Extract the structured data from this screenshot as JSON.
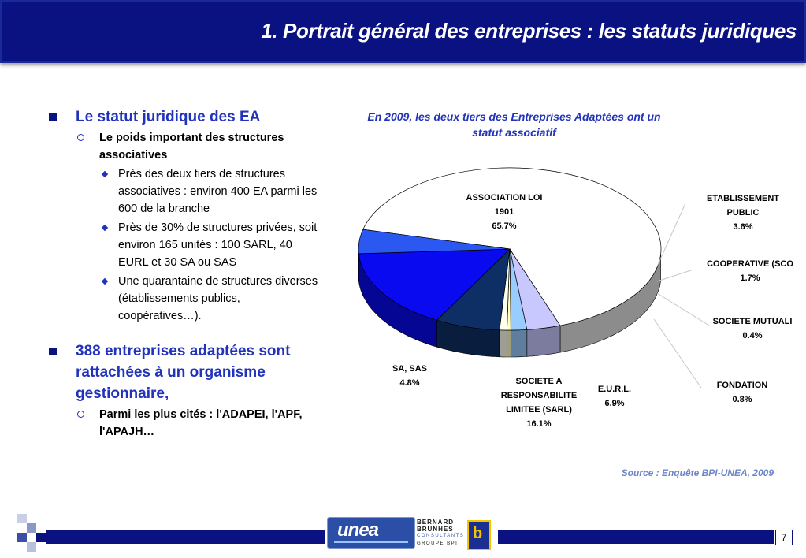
{
  "header": {
    "title": "1. Portrait général des entreprises : les statuts juridiques"
  },
  "bullets": {
    "b1": "Le statut juridique des EA",
    "b1_1": "Le poids important des structures associatives",
    "b1_1_1": "Près des deux tiers de structures associatives : environ 400 EA parmi les 600 de la branche",
    "b1_1_2": "Près de 30% de structures privées, soit environ 165 unités : 100 SARL, 40 EURL et 30 SA ou SAS",
    "b1_1_3": "Une quarantaine de structures diverses (établissements publics, coopératives…).",
    "b2": "388 entreprises adaptées sont rattachées à un organisme gestionnaire,",
    "b2_1": "Parmi les plus cités : l'ADAPEI, l'APF, l'APAJH…"
  },
  "chart_data": {
    "type": "pie",
    "title": "En 2009, les deux tiers des Entreprises Adaptées ont un statut associatif",
    "slices": [
      {
        "label": "ASSOCIATION LOI 1901",
        "value": 65.7,
        "value_label": "65.7%",
        "color": "#ffffff"
      },
      {
        "label": "ETABLISSEMENT PUBLIC",
        "value": 3.6,
        "value_label": "3.6%",
        "color": "#c8c8ff"
      },
      {
        "label": "COOPERATIVE (SCO",
        "value": 1.7,
        "value_label": "1.7%",
        "color": "#99ccff"
      },
      {
        "label": "SOCIETE MUTUALI",
        "value": 0.4,
        "value_label": "0.4%",
        "color": "#ffffcc"
      },
      {
        "label": "FONDATION",
        "value": 0.8,
        "value_label": "0.8%",
        "color": "#ffffee"
      },
      {
        "label": "E.U.R.L.",
        "value": 6.9,
        "value_label": "6.9%",
        "color": "#0e2f66"
      },
      {
        "label": "SOCIETE A RESPONSABILITE LIMITEE (SARL)",
        "value": 16.1,
        "value_label": "16.1%",
        "color": "#0a0af0"
      },
      {
        "label": "SA, SAS",
        "value": 4.8,
        "value_label": "4.8%",
        "color": "#2b58f0"
      }
    ],
    "source": "Source : Enquête BPI-UNEA, 2009"
  },
  "footer": {
    "unea_logo": "unea",
    "bb_line1": "BERNARD",
    "bb_line2": "BRUNHES",
    "bb_line3": "CONSULTANTS",
    "bb_line4": "GROUPE BPI",
    "page_number": "7"
  }
}
